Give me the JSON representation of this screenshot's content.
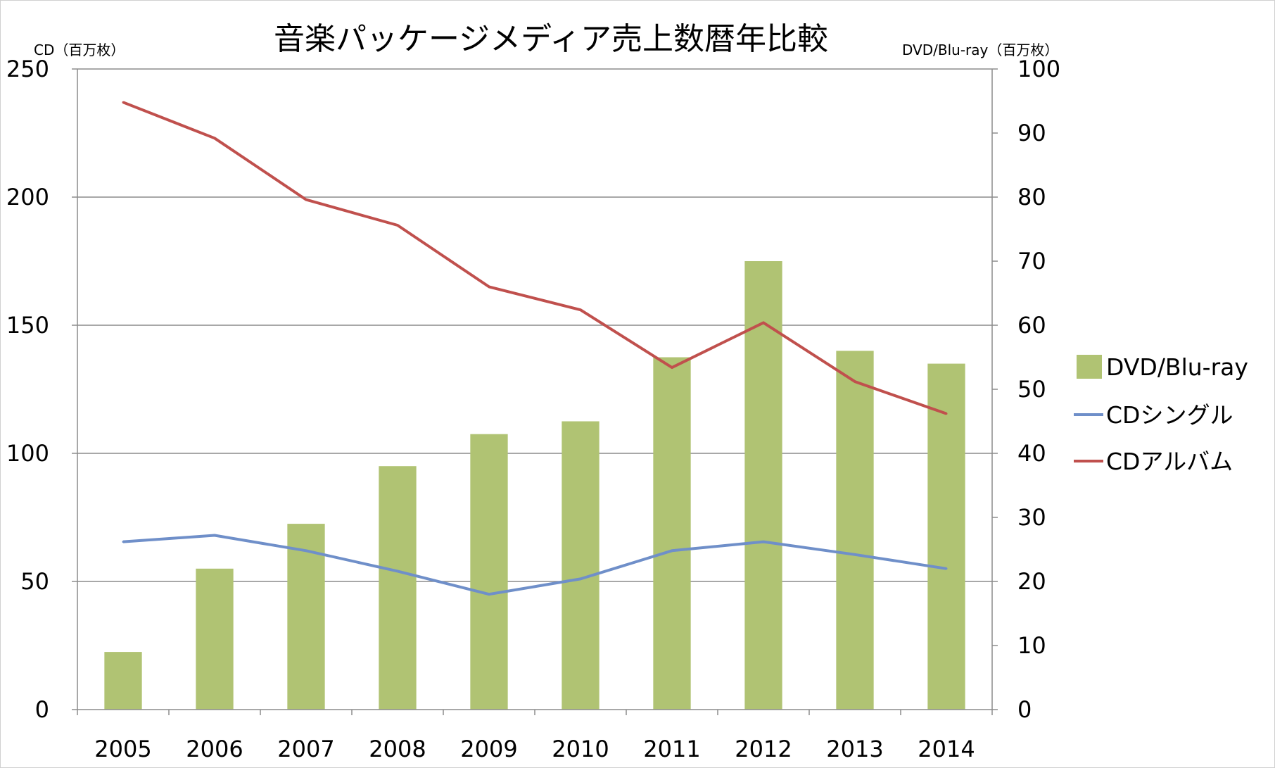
{
  "chart_data": {
    "type": "bar+line",
    "title": "音楽パッケージメディア売上数暦年比較",
    "left_axis": {
      "label": "CD（百万枚）",
      "range": [
        0,
        250
      ],
      "ticks": [
        0,
        50,
        100,
        150,
        200,
        250
      ]
    },
    "right_axis": {
      "label": "DVD/Blu-ray（百万枚）",
      "range": [
        0,
        100
      ],
      "ticks": [
        0,
        10,
        20,
        30,
        40,
        50,
        60,
        70,
        80,
        90,
        100
      ]
    },
    "categories": [
      "2005",
      "2006",
      "2007",
      "2008",
      "2009",
      "2010",
      "2011",
      "2012",
      "2013",
      "2014"
    ],
    "grid": true,
    "legend_position": "right",
    "series": [
      {
        "name": "DVD/Blu-ray",
        "type": "bar",
        "axis": "right",
        "color": "#b0c373",
        "values": [
          9,
          22,
          29,
          38,
          43,
          45,
          55,
          70,
          56,
          54
        ]
      },
      {
        "name": "CDシングル",
        "type": "line",
        "axis": "left",
        "color": "#6f8fc9",
        "values": [
          65.5,
          68,
          62,
          54,
          45,
          51,
          62,
          65.5,
          60.5,
          55
        ]
      },
      {
        "name": "CDアルバム",
        "type": "line",
        "axis": "left",
        "color": "#c0504d",
        "values": [
          237,
          223,
          199,
          189,
          165,
          156,
          133.5,
          151,
          128,
          115.5
        ]
      }
    ]
  }
}
